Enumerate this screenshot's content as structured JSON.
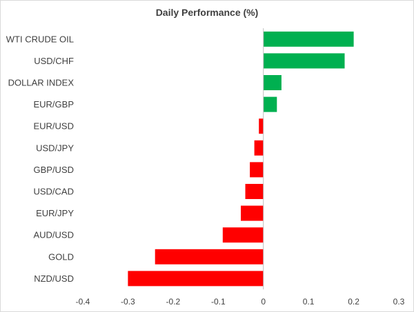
{
  "chart_data": {
    "type": "bar",
    "orientation": "horizontal",
    "title": "Daily Performance (%)",
    "xlabel": "",
    "ylabel": "",
    "categories": [
      "WTI CRUDE OIL",
      "USD/CHF",
      "DOLLAR INDEX",
      "EUR/GBP",
      "EUR/USD",
      "USD/JPY",
      "GBP/USD",
      "USD/CAD",
      "EUR/JPY",
      "AUD/USD",
      "GOLD",
      "NZD/USD"
    ],
    "values": [
      0.2,
      0.18,
      0.04,
      0.03,
      -0.01,
      -0.02,
      -0.03,
      -0.04,
      -0.05,
      -0.09,
      -0.24,
      -0.3
    ],
    "xlim": [
      -0.4,
      0.3
    ],
    "xticks": [
      -0.4,
      -0.3,
      -0.2,
      -0.1,
      0,
      0.1,
      0.2,
      0.3
    ],
    "xtick_labels": [
      "-0.4",
      "-0.3",
      "-0.2",
      "-0.1",
      "0",
      "0.1",
      "0.2",
      "0.3"
    ],
    "grid": false,
    "colors": {
      "positive": "#00b050",
      "negative": "#ff0000",
      "axis": "#bfbfbf",
      "text": "#404040"
    }
  }
}
